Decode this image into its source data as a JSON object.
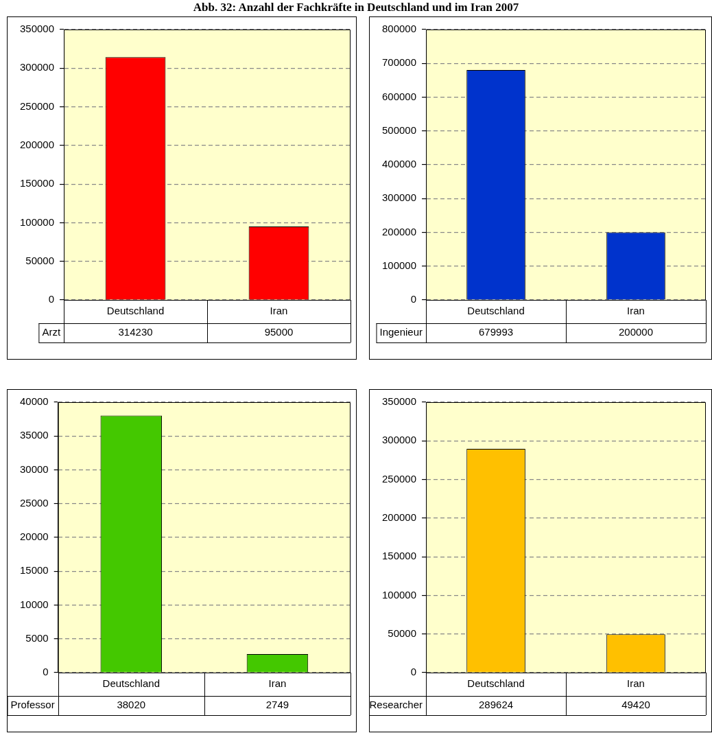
{
  "chart_data": [
    {
      "type": "bar",
      "title": "Abb. 32: Anzahl der Fachkräfte in Deutschland und im Iran 2007",
      "categories": [
        "Deutschland",
        "Iran"
      ],
      "series": [
        {
          "name": "Arzt",
          "color": "#ff0000",
          "values": [
            314230,
            95000
          ]
        }
      ],
      "ylim": [
        0,
        350000
      ],
      "yticks": [
        0,
        50000,
        100000,
        150000,
        200000,
        250000,
        300000,
        350000
      ],
      "grid": "y",
      "legend": false,
      "data_labels": true
    },
    {
      "type": "bar",
      "categories": [
        "Deutschland",
        "Iran"
      ],
      "series": [
        {
          "name": "Ingenieur",
          "color": "#0033cc",
          "values": [
            679993,
            200000
          ]
        }
      ],
      "ylim": [
        0,
        800000
      ],
      "yticks": [
        0,
        100000,
        200000,
        300000,
        400000,
        500000,
        600000,
        700000,
        800000
      ],
      "grid": "y",
      "legend": false,
      "data_labels": true
    },
    {
      "type": "bar",
      "categories": [
        "Deutschland",
        "Iran"
      ],
      "series": [
        {
          "name": "Professor",
          "color": "#44c800",
          "values": [
            38020,
            2749
          ]
        }
      ],
      "ylim": [
        0,
        40000
      ],
      "yticks": [
        0,
        5000,
        10000,
        15000,
        20000,
        25000,
        30000,
        35000,
        40000
      ],
      "grid": "y",
      "legend": false,
      "data_labels": true
    },
    {
      "type": "bar",
      "categories": [
        "Deutschland",
        "Iran"
      ],
      "series": [
        {
          "name": "Researcher",
          "color": "#ffc000",
          "values": [
            289624,
            49420
          ]
        }
      ],
      "ylim": [
        0,
        350000
      ],
      "yticks": [
        0,
        50000,
        100000,
        150000,
        200000,
        250000,
        300000,
        350000
      ],
      "grid": "y",
      "legend": false,
      "data_labels": true
    }
  ]
}
